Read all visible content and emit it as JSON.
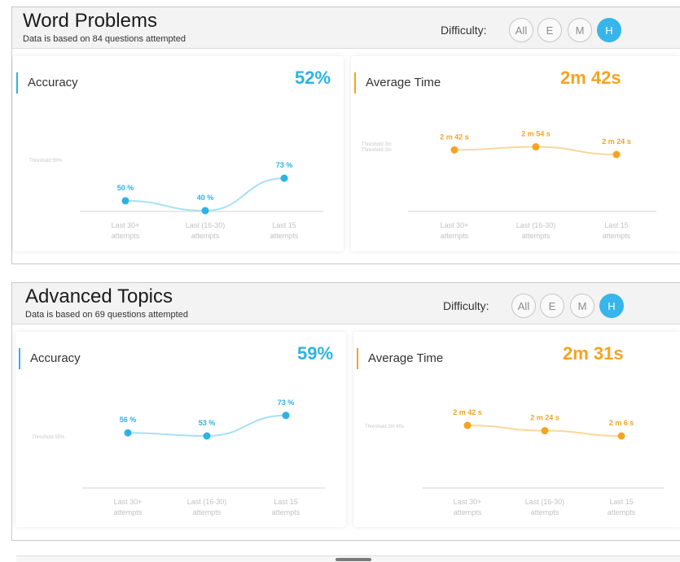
{
  "colors": {
    "accuracy": "#2bb3e3",
    "accuracy_line": "#a6e0f5",
    "time": "#f4a421",
    "time_line": "#f9d79a",
    "active_difficulty": "#36b6ea"
  },
  "panels": [
    {
      "title": "Word Problems",
      "subtitle": "Data is based on 84 questions attempted",
      "difficulty_label": "Difficulty:",
      "difficulty_options": [
        "All",
        "E",
        "M",
        "H"
      ],
      "selected_difficulty": "H",
      "accuracy": {
        "label": "Accuracy",
        "value": "52%",
        "threshold": "Threshold 55%",
        "chart_data": {
          "type": "line",
          "categories": [
            [
              "Last 30+",
              "attempts"
            ],
            [
              "Last (16-30)",
              "attempts"
            ],
            [
              "Last 15",
              "attempts"
            ]
          ],
          "values": [
            50,
            40,
            73
          ],
          "value_labels": [
            "50 %",
            "40 %",
            "73 %"
          ]
        }
      },
      "time": {
        "label": "Average Time",
        "value": "2m 42s",
        "threshold": [
          "Threshold 3m",
          "Threshold 2m"
        ],
        "chart_data": {
          "type": "line",
          "categories": [
            [
              "Last 30+",
              "attempts"
            ],
            [
              "Last (16-30)",
              "attempts"
            ],
            [
              "Last 15",
              "attempts"
            ]
          ],
          "values": [
            162,
            174,
            144
          ],
          "unit": "seconds",
          "value_labels": [
            "2 m 42 s",
            "2 m 54 s",
            "2 m 24 s"
          ]
        }
      }
    },
    {
      "title": "Advanced Topics",
      "subtitle": "Data is based on 69 questions attempted",
      "difficulty_label": "Difficulty:",
      "difficulty_options": [
        "All",
        "E",
        "M",
        "H"
      ],
      "selected_difficulty": "H",
      "accuracy": {
        "label": "Accuracy",
        "value": "59%",
        "threshold": "Threshold 55%",
        "chart_data": {
          "type": "line",
          "categories": [
            [
              "Last 30+",
              "attempts"
            ],
            [
              "Last (16-30)",
              "attempts"
            ],
            [
              "Last 15",
              "attempts"
            ]
          ],
          "values": [
            56,
            53,
            73
          ],
          "value_labels": [
            "56 %",
            "53 %",
            "73 %"
          ]
        }
      },
      "time": {
        "label": "Average Time",
        "value": "2m 31s",
        "threshold": [
          "Threshold 2m 40s"
        ],
        "chart_data": {
          "type": "line",
          "categories": [
            [
              "Last 30+",
              "attempts"
            ],
            [
              "Last (16-30)",
              "attempts"
            ],
            [
              "Last 15",
              "attempts"
            ]
          ],
          "values": [
            162,
            144,
            126
          ],
          "unit": "seconds",
          "value_labels": [
            "2 m 42 s",
            "2 m 24 s",
            "2 m 6 s"
          ]
        }
      }
    }
  ]
}
